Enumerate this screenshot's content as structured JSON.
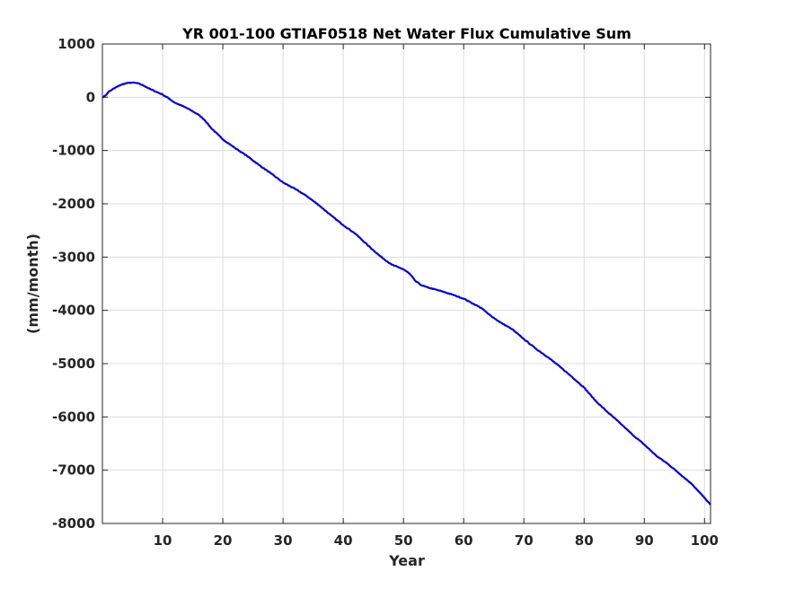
{
  "chart_data": {
    "type": "line",
    "title": "YR 001-100 GTIAF0518 Net Water Flux Cumulative Sum",
    "xlabel": "Year",
    "ylabel": "(mm/month)",
    "xlim": [
      0,
      101
    ],
    "ylim": [
      -8000,
      1000
    ],
    "xticks": [
      10,
      20,
      30,
      40,
      50,
      60,
      70,
      80,
      90,
      100
    ],
    "xtick_labels": [
      "10",
      "20",
      "30",
      "40",
      "50",
      "60",
      "70",
      "80",
      "90",
      "100"
    ],
    "yticks": [
      1000,
      0,
      -1000,
      -2000,
      -3000,
      -4000,
      -5000,
      -6000,
      -7000,
      -8000
    ],
    "ytick_labels": [
      "1000",
      "0",
      "-1000",
      "-2000",
      "-3000",
      "-4000",
      "-5000",
      "-6000",
      "-7000",
      "-8000"
    ],
    "grid": true,
    "colors": {
      "line": "#0000d6",
      "grid": "#dcdcdc",
      "axis": "#262626"
    },
    "series": [
      {
        "x": [
          0,
          0.5,
          1,
          2,
          3,
          4,
          5,
          6,
          7,
          8,
          9,
          10,
          11,
          12,
          14,
          16,
          17,
          18,
          20,
          22,
          24,
          26,
          28,
          30,
          32,
          34,
          36,
          38,
          40,
          42,
          44,
          46,
          48,
          50,
          51,
          52,
          53,
          54,
          56,
          58,
          60,
          61,
          62,
          63,
          64,
          66,
          68,
          70,
          72,
          74,
          76,
          78,
          80,
          82,
          84,
          86,
          88,
          90,
          92,
          94,
          96,
          98,
          100,
          101
        ],
        "y": [
          0,
          30,
          100,
          170,
          230,
          265,
          275,
          260,
          210,
          150,
          100,
          50,
          -20,
          -100,
          -200,
          -330,
          -430,
          -570,
          -790,
          -950,
          -1100,
          -1270,
          -1430,
          -1600,
          -1720,
          -1860,
          -2030,
          -2220,
          -2400,
          -2560,
          -2770,
          -2970,
          -3140,
          -3230,
          -3310,
          -3450,
          -3530,
          -3570,
          -3630,
          -3700,
          -3780,
          -3840,
          -3900,
          -3960,
          -4060,
          -4220,
          -4350,
          -4540,
          -4720,
          -4880,
          -5060,
          -5250,
          -5450,
          -5710,
          -5920,
          -6120,
          -6330,
          -6520,
          -6730,
          -6890,
          -7080,
          -7270,
          -7520,
          -7650
        ]
      }
    ]
  }
}
